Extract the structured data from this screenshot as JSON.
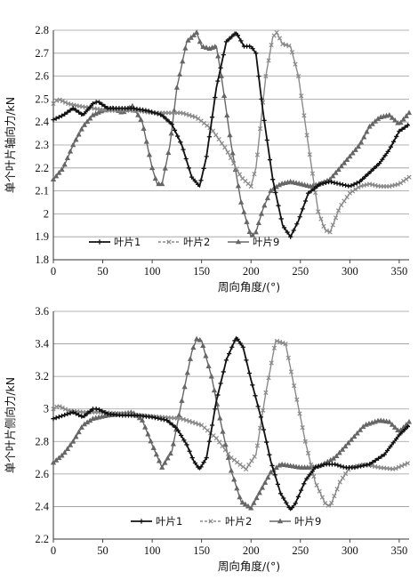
{
  "chart_data": [
    {
      "type": "line",
      "title": "",
      "xlabel": "周向角度/(°)",
      "ylabel": "单个叶片轴向力/kN",
      "xlim": [
        0,
        360
      ],
      "ylim": [
        1.8,
        2.8
      ],
      "xticks": [
        "0",
        "50",
        "100",
        "150",
        "200",
        "250",
        "300",
        "350"
      ],
      "yticks": [
        "1.8",
        "1.9",
        "2",
        "2.1",
        "2.2",
        "2.3",
        "2.4",
        "2.5",
        "2.6",
        "2.7",
        "2.8"
      ],
      "grid": "horizontal",
      "legend_position": "lower-left",
      "series": [
        {
          "name": "叶片1",
          "color": "#111111",
          "marker": "plus",
          "x": [
            0,
            10,
            20,
            30,
            40,
            45,
            55,
            65,
            80,
            95,
            110,
            120,
            130,
            140,
            148,
            155,
            165,
            175,
            185,
            193,
            200,
            205,
            212,
            222,
            232,
            240,
            248,
            258,
            270,
            280,
            290,
            300,
            310,
            320,
            330,
            340,
            350,
            360
          ],
          "y": [
            2.41,
            2.43,
            2.46,
            2.43,
            2.48,
            2.49,
            2.46,
            2.46,
            2.46,
            2.45,
            2.43,
            2.39,
            2.3,
            2.16,
            2.12,
            2.25,
            2.55,
            2.75,
            2.79,
            2.73,
            2.73,
            2.7,
            2.45,
            2.15,
            1.95,
            1.9,
            1.97,
            2.09,
            2.13,
            2.14,
            2.13,
            2.12,
            2.14,
            2.18,
            2.22,
            2.28,
            2.36,
            2.39
          ]
        },
        {
          "name": "叶片2",
          "color": "#8a8a8a",
          "marker": "x",
          "x": [
            0,
            5,
            15,
            25,
            40,
            55,
            70,
            85,
            100,
            115,
            130,
            145,
            160,
            175,
            190,
            200,
            205,
            215,
            222,
            226,
            232,
            240,
            248,
            258,
            268,
            275,
            280,
            290,
            300,
            310,
            320,
            330,
            340,
            350,
            360
          ],
          "y": [
            2.48,
            2.5,
            2.48,
            2.47,
            2.46,
            2.45,
            2.45,
            2.45,
            2.44,
            2.44,
            2.44,
            2.42,
            2.37,
            2.28,
            2.16,
            2.12,
            2.2,
            2.6,
            2.77,
            2.79,
            2.74,
            2.73,
            2.6,
            2.3,
            2.01,
            1.93,
            1.92,
            2.03,
            2.09,
            2.12,
            2.13,
            2.12,
            2.12,
            2.13,
            2.16
          ]
        },
        {
          "name": "叶片9",
          "color": "#666666",
          "marker": "triangle",
          "x": [
            0,
            10,
            20,
            30,
            40,
            50,
            60,
            70,
            80,
            90,
            100,
            105,
            110,
            118,
            125,
            135,
            145,
            150,
            158,
            165,
            170,
            180,
            190,
            200,
            205,
            212,
            220,
            230,
            240,
            250,
            260,
            270,
            280,
            290,
            300,
            310,
            320,
            330,
            340,
            350,
            360
          ],
          "y": [
            2.15,
            2.2,
            2.3,
            2.38,
            2.43,
            2.45,
            2.46,
            2.44,
            2.47,
            2.4,
            2.2,
            2.13,
            2.13,
            2.3,
            2.55,
            2.75,
            2.79,
            2.73,
            2.72,
            2.73,
            2.6,
            2.3,
            2.05,
            1.9,
            1.92,
            2.02,
            2.1,
            2.13,
            2.14,
            2.13,
            2.12,
            2.13,
            2.15,
            2.2,
            2.25,
            2.3,
            2.38,
            2.42,
            2.43,
            2.39,
            2.44
          ]
        }
      ]
    },
    {
      "type": "line",
      "title": "",
      "xlabel": "周向角度/(°)",
      "ylabel": "单个叶片侧向力/kN",
      "xlim": [
        0,
        360
      ],
      "ylim": [
        2.2,
        3.6
      ],
      "xticks": [
        "0",
        "50",
        "100",
        "150",
        "200",
        "250",
        "300",
        "350"
      ],
      "yticks": [
        "2.2",
        "2.4",
        "2.6",
        "2.8",
        "3",
        "3.2",
        "3.4",
        "3.6"
      ],
      "grid": "horizontal",
      "legend_position": "lower-left",
      "series": [
        {
          "name": "叶片1",
          "color": "#111111",
          "marker": "plus",
          "x": [
            0,
            10,
            20,
            30,
            40,
            45,
            55,
            70,
            85,
            100,
            115,
            125,
            135,
            142,
            148,
            155,
            165,
            175,
            185,
            192,
            200,
            210,
            220,
            230,
            240,
            245,
            255,
            265,
            275,
            285,
            295,
            305,
            320,
            335,
            350,
            360
          ],
          "y": [
            2.94,
            2.96,
            2.98,
            2.95,
            3.0,
            3.0,
            2.97,
            2.96,
            2.96,
            2.95,
            2.93,
            2.88,
            2.78,
            2.68,
            2.63,
            2.7,
            3.05,
            3.3,
            3.44,
            3.38,
            3.18,
            2.95,
            2.68,
            2.48,
            2.38,
            2.42,
            2.56,
            2.64,
            2.66,
            2.66,
            2.64,
            2.64,
            2.66,
            2.72,
            2.84,
            2.9
          ]
        },
        {
          "name": "叶片2",
          "color": "#8a8a8a",
          "marker": "x",
          "x": [
            0,
            5,
            15,
            30,
            50,
            70,
            90,
            110,
            130,
            150,
            165,
            180,
            195,
            205,
            215,
            225,
            235,
            245,
            255,
            265,
            275,
            280,
            290,
            300,
            315,
            330,
            345,
            360
          ],
          "y": [
            3.0,
            3.02,
            2.99,
            2.98,
            2.98,
            2.97,
            2.96,
            2.95,
            2.94,
            2.9,
            2.82,
            2.7,
            2.63,
            2.72,
            3.1,
            3.42,
            3.4,
            3.1,
            2.8,
            2.55,
            2.42,
            2.4,
            2.55,
            2.64,
            2.66,
            2.64,
            2.63,
            2.67
          ]
        },
        {
          "name": "叶片9",
          "color": "#666666",
          "marker": "triangle",
          "x": [
            0,
            10,
            20,
            30,
            40,
            55,
            70,
            80,
            90,
            100,
            110,
            120,
            130,
            140,
            145,
            150,
            160,
            170,
            180,
            190,
            200,
            210,
            220,
            230,
            240,
            250,
            260,
            270,
            285,
            300,
            315,
            330,
            340,
            350,
            360
          ],
          "y": [
            2.67,
            2.72,
            2.8,
            2.9,
            2.94,
            2.96,
            2.97,
            2.98,
            2.93,
            2.78,
            2.64,
            2.74,
            3.05,
            3.35,
            3.43,
            3.42,
            3.2,
            2.9,
            2.62,
            2.43,
            2.39,
            2.5,
            2.61,
            2.66,
            2.65,
            2.64,
            2.64,
            2.65,
            2.7,
            2.8,
            2.9,
            2.93,
            2.92,
            2.86,
            2.92
          ]
        }
      ]
    }
  ]
}
